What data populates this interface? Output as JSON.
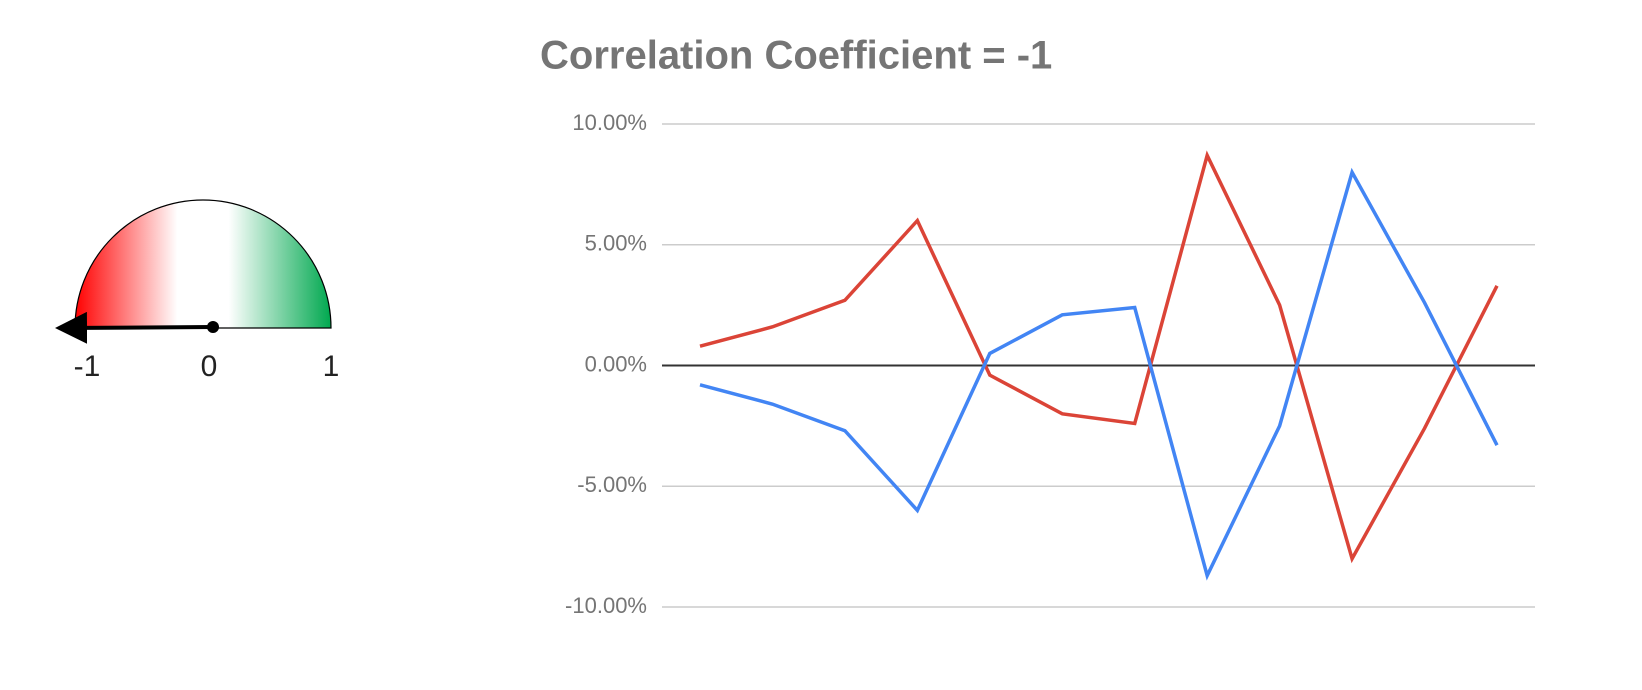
{
  "chart_data": [
    {
      "type": "gauge",
      "value": -1,
      "xlim": [
        -1,
        1
      ],
      "xticks": [
        -1,
        0,
        1
      ]
    },
    {
      "type": "line",
      "title": "Correlation Coefficient = -1",
      "categories": [
        null,
        null,
        null,
        null,
        null,
        null,
        null,
        null,
        null,
        null,
        null,
        null
      ],
      "series": [
        {
          "color": "#db4437",
          "values": [
            0.8,
            1.6,
            2.7,
            6.0,
            -0.4,
            -2.0,
            -2.4,
            8.7,
            2.5,
            -8.0,
            -2.6,
            3.3
          ]
        },
        {
          "color": "#4285f4",
          "values": [
            -0.8,
            -1.6,
            -2.7,
            -6.0,
            0.5,
            2.1,
            2.4,
            -8.7,
            -2.5,
            8.0,
            2.6,
            -3.3
          ]
        }
      ],
      "ylim": [
        -10,
        10
      ],
      "yticks": [
        {
          "value": -10,
          "label": "-10.00%"
        },
        {
          "value": -5,
          "label": "-5.00%"
        },
        {
          "value": 0,
          "label": "0.00%"
        },
        {
          "value": 5,
          "label": "5.00%"
        },
        {
          "value": 10,
          "label": "10.00%"
        }
      ],
      "grid": true
    }
  ]
}
